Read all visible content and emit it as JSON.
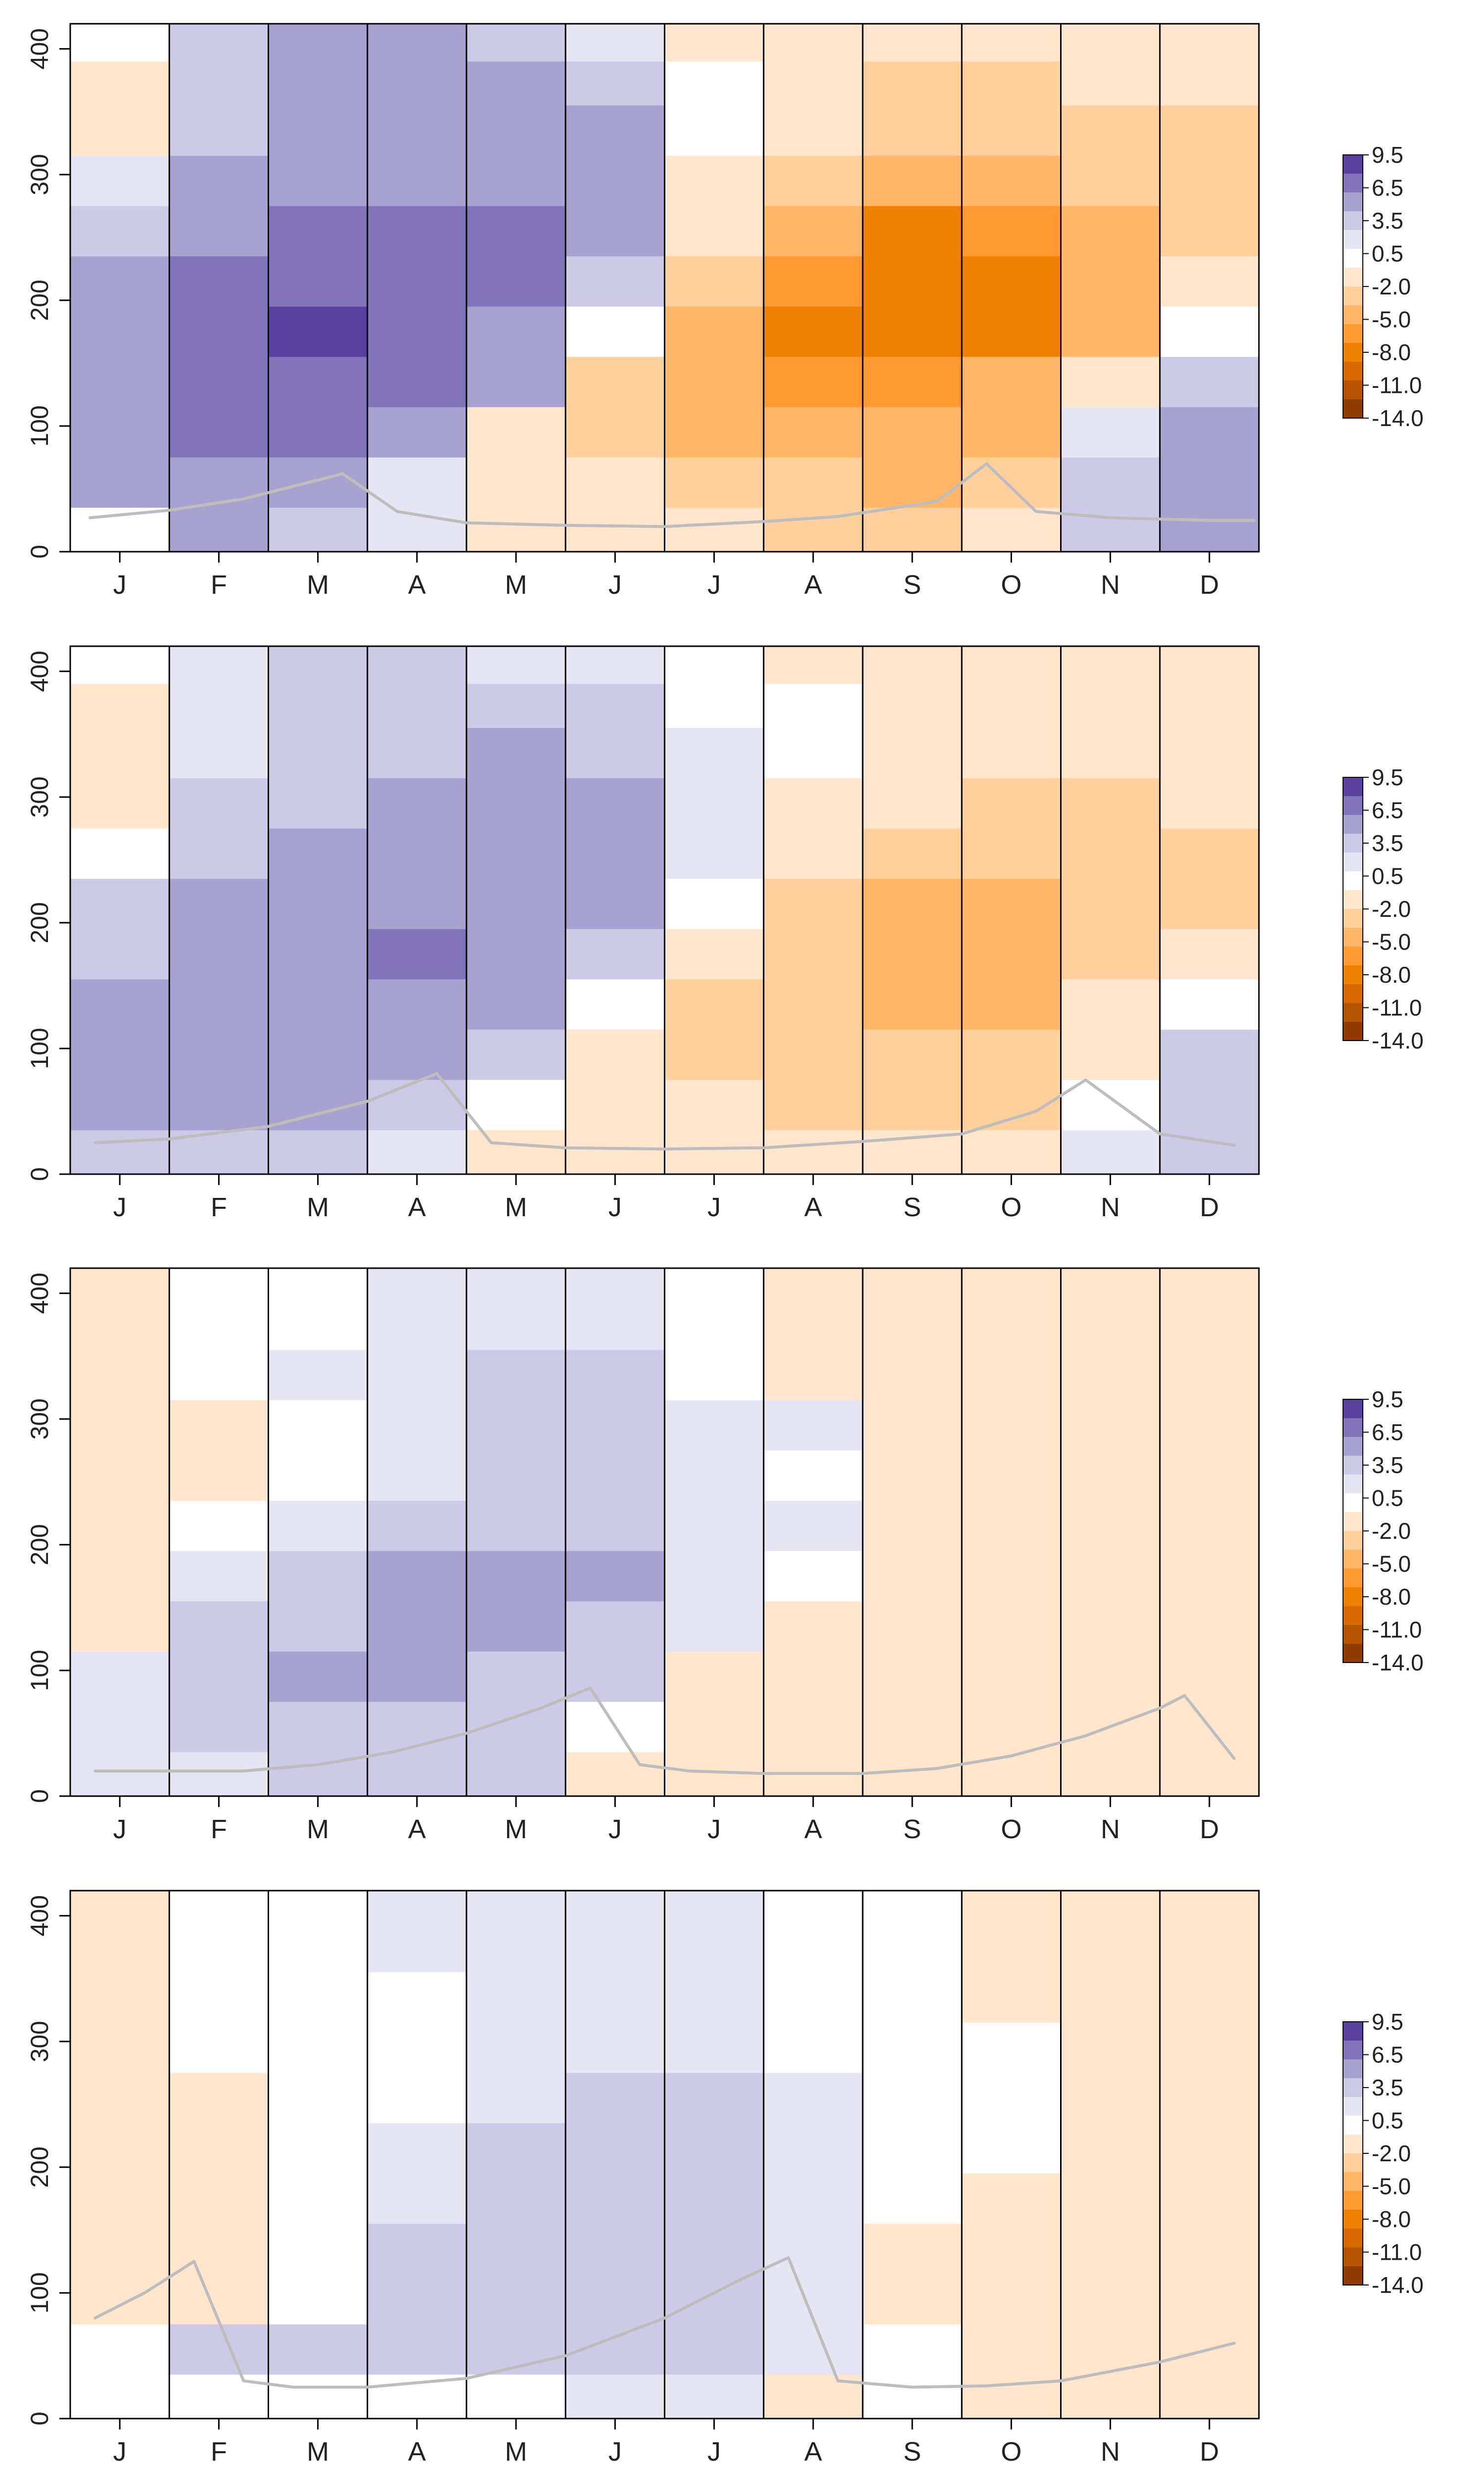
{
  "figure": {
    "month_labels": [
      "J",
      "F",
      "M",
      "A",
      "M",
      "J",
      "J",
      "A",
      "S",
      "O",
      "N",
      "D"
    ],
    "y_ticks": [
      0,
      100,
      200,
      300,
      400
    ],
    "ylim": [
      0,
      420
    ],
    "colorbar": {
      "labels": [
        "9.5",
        "6.5",
        "3.5",
        "0.5",
        "-2.0",
        "-5.0",
        "-8.0",
        "-11.0",
        "-14.0"
      ],
      "colors": [
        "#5a3f9e",
        "#8174b8",
        "#a8a2d0",
        "#cccae6",
        "#e6e5f4",
        "#ffffff",
        "#ffe6cc",
        "#ffcf9c",
        "#ffb666",
        "#ff9a33",
        "#f08000",
        "#d86a00",
        "#b85400",
        "#8f3c00"
      ]
    }
  },
  "chart_data": [
    {
      "type": "heatmap",
      "panel": 1,
      "xlabel": "",
      "ylabel": "",
      "ylim": [
        0,
        420
      ],
      "categories": [
        "J",
        "F",
        "M",
        "A",
        "M",
        "J",
        "J",
        "A",
        "S",
        "O",
        "N",
        "D"
      ],
      "depth_levels": [
        20,
        60,
        100,
        140,
        180,
        220,
        260,
        300,
        340,
        380,
        415
      ],
      "values": [
        [
          0.0,
          2.0,
          1.5,
          0.3,
          -0.8,
          -1.5,
          -2.0,
          -2.5,
          -2.5,
          -2.0,
          1.0,
          2.0
        ],
        [
          2.0,
          3.5,
          3.0,
          0.5,
          -1.0,
          -2.0,
          -3.0,
          -3.5,
          -4.0,
          -3.5,
          1.0,
          2.5
        ],
        [
          4.0,
          5.5,
          6.0,
          2.0,
          -1.5,
          -3.0,
          -4.5,
          -5.0,
          -5.0,
          -4.0,
          0.5,
          2.0
        ],
        [
          4.5,
          6.0,
          6.5,
          5.0,
          2.0,
          -2.5,
          -5.0,
          -6.0,
          -6.0,
          -5.0,
          -2.0,
          1.5
        ],
        [
          3.5,
          6.5,
          8.0,
          7.0,
          4.0,
          0.0,
          -4.5,
          -6.5,
          -7.5,
          -7.0,
          -4.0,
          0.0
        ],
        [
          2.5,
          5.5,
          7.0,
          7.5,
          5.0,
          1.5,
          -3.0,
          -5.5,
          -7.5,
          -7.5,
          -5.0,
          -2.0
        ],
        [
          1.5,
          4.0,
          5.5,
          6.0,
          5.0,
          2.0,
          -2.0,
          -4.5,
          -6.5,
          -6.0,
          -4.5,
          -3.0
        ],
        [
          0.5,
          2.5,
          4.0,
          4.5,
          4.0,
          2.0,
          -1.0,
          -3.0,
          -4.5,
          -4.5,
          -3.5,
          -3.0
        ],
        [
          -1.0,
          1.5,
          3.0,
          3.5,
          3.0,
          2.0,
          0.0,
          -2.0,
          -3.5,
          -3.5,
          -3.0,
          -2.5
        ],
        [
          -1.5,
          1.0,
          2.5,
          2.5,
          2.0,
          1.0,
          0.0,
          -1.5,
          -2.5,
          -2.5,
          -2.0,
          -2.0
        ],
        [
          0.0,
          1.0,
          2.0,
          2.0,
          1.5,
          0.5,
          -1.0,
          -1.5,
          -2.0,
          -2.0,
          -1.5,
          -1.0
        ]
      ],
      "line": {
        "x": [
          0.2,
          1.0,
          1.75,
          2.75,
          3.3,
          4.0,
          5.0,
          6.0,
          7.0,
          7.75,
          8.75,
          9.25,
          9.75,
          10.5,
          11.5,
          11.95
        ],
        "y": [
          27,
          33,
          42,
          62,
          32,
          23,
          21,
          20,
          24,
          28,
          40,
          70,
          32,
          27,
          25,
          25
        ]
      }
    },
    {
      "type": "heatmap",
      "panel": 2,
      "xlabel": "",
      "ylabel": "",
      "ylim": [
        0,
        420
      ],
      "categories": [
        "J",
        "F",
        "M",
        "A",
        "M",
        "J",
        "J",
        "A",
        "S",
        "O",
        "N",
        "D"
      ],
      "depth_levels": [
        20,
        60,
        100,
        140,
        180,
        220,
        260,
        300,
        340,
        380,
        415
      ],
      "values": [
        [
          1.0,
          1.5,
          1.0,
          0.5,
          -1.0,
          -1.5,
          -1.5,
          -2.0,
          -2.0,
          -1.5,
          0.5,
          1.5
        ],
        [
          2.0,
          2.5,
          2.5,
          1.0,
          0.0,
          -1.5,
          -2.0,
          -2.5,
          -2.5,
          -2.5,
          0.0,
          1.5
        ],
        [
          2.5,
          3.5,
          4.0,
          2.5,
          1.0,
          -1.0,
          -2.5,
          -3.0,
          -3.5,
          -3.0,
          -1.0,
          1.0
        ],
        [
          2.5,
          4.0,
          4.5,
          4.0,
          2.5,
          0.0,
          -2.5,
          -3.5,
          -4.5,
          -4.0,
          -2.0,
          0.0
        ],
        [
          1.5,
          3.5,
          4.5,
          5.0,
          4.0,
          1.5,
          -1.5,
          -3.5,
          -5.0,
          -5.0,
          -3.5,
          -1.5
        ],
        [
          1.0,
          2.5,
          4.0,
          4.5,
          4.0,
          2.5,
          0.0,
          -2.5,
          -4.0,
          -4.5,
          -3.5,
          -2.5
        ],
        [
          0.0,
          1.5,
          2.5,
          3.5,
          3.5,
          2.0,
          0.5,
          -1.5,
          -3.0,
          -3.5,
          -3.0,
          -2.5
        ],
        [
          -1.5,
          1.0,
          1.5,
          2.5,
          2.5,
          2.0,
          0.5,
          -1.0,
          -2.0,
          -2.5,
          -2.5,
          -2.0
        ],
        [
          -1.5,
          0.5,
          1.5,
          1.5,
          2.0,
          1.5,
          0.5,
          -0.5,
          -1.5,
          -2.0,
          -2.0,
          -2.0
        ],
        [
          -1.0,
          0.5,
          1.0,
          1.0,
          1.0,
          1.0,
          0.0,
          -0.5,
          -1.0,
          -1.5,
          -1.5,
          -1.5
        ],
        [
          0.0,
          0.5,
          1.0,
          1.0,
          0.5,
          0.5,
          -0.5,
          -1.0,
          -1.5,
          -1.5,
          -1.5,
          -1.0
        ]
      ],
      "line": {
        "x": [
          0.25,
          1.0,
          2.0,
          3.0,
          3.7,
          4.25,
          5.0,
          6.0,
          7.0,
          8.0,
          9.0,
          9.75,
          10.25,
          11.0,
          11.75
        ],
        "y": [
          25,
          28,
          38,
          58,
          80,
          25,
          21,
          20,
          21,
          26,
          32,
          50,
          75,
          32,
          23
        ]
      }
    },
    {
      "type": "heatmap",
      "panel": 3,
      "xlabel": "",
      "ylabel": "",
      "ylim": [
        0,
        420
      ],
      "categories": [
        "J",
        "F",
        "M",
        "A",
        "M",
        "J",
        "J",
        "A",
        "S",
        "O",
        "N",
        "D"
      ],
      "depth_levels": [
        20,
        60,
        100,
        140,
        180,
        220,
        260,
        300,
        340,
        380,
        415
      ],
      "values": [
        [
          0.5,
          0.5,
          1.0,
          1.0,
          1.0,
          -1.0,
          -1.0,
          -1.5,
          -1.5,
          -1.0,
          -1.0,
          -1.0
        ],
        [
          0.5,
          1.0,
          1.5,
          1.5,
          1.5,
          -0.5,
          -1.0,
          -1.5,
          -1.5,
          -1.5,
          -1.0,
          -1.0
        ],
        [
          0.5,
          1.0,
          2.0,
          2.0,
          1.5,
          1.0,
          -1.0,
          -1.5,
          -2.0,
          -2.0,
          -1.5,
          -1.0
        ],
        [
          -1.0,
          1.0,
          1.5,
          2.5,
          2.5,
          1.5,
          0.5,
          -1.0,
          -2.0,
          -2.0,
          -2.0,
          -1.5
        ],
        [
          -1.0,
          0.5,
          1.0,
          2.0,
          2.5,
          2.0,
          0.5,
          0.0,
          -1.5,
          -2.0,
          -2.0,
          -2.0
        ],
        [
          -1.5,
          0.0,
          0.5,
          1.5,
          1.5,
          1.5,
          0.5,
          0.5,
          -1.0,
          -1.5,
          -1.5,
          -2.0
        ],
        [
          -1.5,
          -1.0,
          0.0,
          0.5,
          1.0,
          1.0,
          0.5,
          0.0,
          -1.0,
          -1.5,
          -1.5,
          -1.5
        ],
        [
          -1.5,
          -1.0,
          0.0,
          0.5,
          1.0,
          1.0,
          0.5,
          0.5,
          -1.0,
          -1.5,
          -1.5,
          -1.5
        ],
        [
          -1.5,
          0.0,
          0.5,
          0.5,
          1.0,
          1.0,
          0.0,
          -1.0,
          -1.0,
          -1.5,
          -1.5,
          -1.5
        ],
        [
          -1.5,
          0.0,
          0.0,
          0.5,
          0.5,
          0.5,
          0.0,
          -1.0,
          -1.5,
          -1.5,
          -1.5,
          -1.5
        ],
        [
          -1.0,
          0.0,
          0.0,
          0.5,
          0.5,
          0.5,
          0.0,
          -1.0,
          -1.5,
          -1.5,
          -1.5,
          -1.5
        ]
      ],
      "line": {
        "x": [
          0.25,
          1.0,
          1.75,
          2.5,
          3.25,
          4.0,
          4.75,
          5.25,
          5.75,
          6.25,
          7.0,
          8.0,
          8.75,
          9.5,
          10.25,
          11.0,
          11.25,
          11.75
        ],
        "y": [
          20,
          20,
          20,
          25,
          35,
          50,
          70,
          86,
          25,
          20,
          18,
          18,
          22,
          32,
          48,
          70,
          80,
          30
        ]
      }
    },
    {
      "type": "heatmap",
      "panel": 4,
      "xlabel": "",
      "ylabel": "",
      "ylim": [
        0,
        420
      ],
      "categories": [
        "J",
        "F",
        "M",
        "A",
        "M",
        "J",
        "J",
        "A",
        "S",
        "O",
        "N",
        "D"
      ],
      "depth_levels": [
        20,
        60,
        100,
        140,
        180,
        220,
        260,
        300,
        340,
        380,
        415
      ],
      "values": [
        [
          0.0,
          0.0,
          0.0,
          0.0,
          0.0,
          0.5,
          0.5,
          -1.0,
          0.0,
          -1.0,
          -1.0,
          -1.0
        ],
        [
          0.0,
          1.0,
          1.0,
          1.0,
          1.0,
          1.0,
          1.0,
          0.5,
          0.0,
          -1.0,
          -1.0,
          -1.0
        ],
        [
          -1.0,
          -1.0,
          0.0,
          1.0,
          1.0,
          1.0,
          1.0,
          0.5,
          -1.0,
          -1.0,
          -1.0,
          -1.0
        ],
        [
          -1.0,
          -1.0,
          0.0,
          1.0,
          1.0,
          1.0,
          1.0,
          0.5,
          -1.0,
          -1.0,
          -1.0,
          -1.0
        ],
        [
          -1.0,
          -1.0,
          0.0,
          0.5,
          1.0,
          1.0,
          1.0,
          0.5,
          0.0,
          -1.0,
          -1.0,
          -1.0
        ],
        [
          -1.0,
          -1.0,
          0.0,
          0.5,
          1.0,
          1.0,
          1.0,
          0.5,
          0.0,
          0.0,
          -1.0,
          -1.0
        ],
        [
          -1.0,
          -1.0,
          0.0,
          0.0,
          0.5,
          1.0,
          1.0,
          0.5,
          0.0,
          0.0,
          -1.0,
          -1.0
        ],
        [
          -1.0,
          0.0,
          0.0,
          0.0,
          0.5,
          0.5,
          0.5,
          0.0,
          0.0,
          0.0,
          -1.0,
          -1.0
        ],
        [
          -1.0,
          0.0,
          0.0,
          0.0,
          0.5,
          0.5,
          0.5,
          0.0,
          0.0,
          -1.0,
          -1.0,
          -1.0
        ],
        [
          -1.0,
          0.0,
          0.0,
          0.5,
          0.5,
          0.5,
          0.5,
          0.0,
          0.0,
          -1.0,
          -1.0,
          -1.0
        ],
        [
          -1.0,
          0.0,
          0.0,
          0.5,
          0.5,
          0.5,
          0.5,
          0.0,
          0.0,
          -1.0,
          -1.0,
          -1.0
        ]
      ],
      "line": {
        "x": [
          0.25,
          0.75,
          1.25,
          1.75,
          2.25,
          3.0,
          4.0,
          5.0,
          6.0,
          6.75,
          7.25,
          7.75,
          8.5,
          9.25,
          10.0,
          11.0,
          11.75
        ],
        "y": [
          80,
          100,
          125,
          30,
          25,
          25,
          32,
          50,
          80,
          110,
          128,
          30,
          25,
          26,
          30,
          45,
          60
        ]
      }
    }
  ]
}
